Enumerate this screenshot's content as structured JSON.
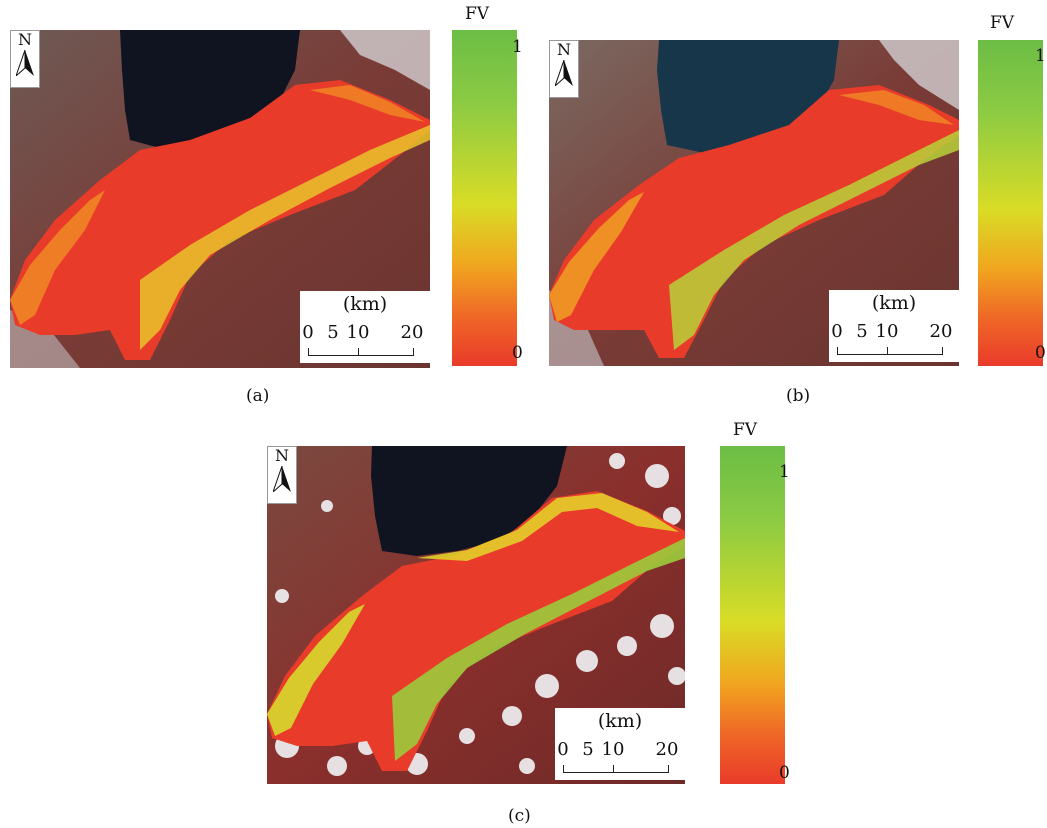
{
  "panels": [
    {
      "id": "a",
      "caption": "(a)"
    },
    {
      "id": "b",
      "caption": "(b)"
    },
    {
      "id": "c",
      "caption": "(c)"
    }
  ],
  "north_label": "N",
  "legend": {
    "title": "FV",
    "max_label": "1",
    "min_label": "0",
    "colors": [
      "#6cbd45",
      "#d9dc26",
      "#f0a61f",
      "#e93b2a"
    ]
  },
  "scale_bar": {
    "unit": "(km)",
    "ticks": [
      "0",
      "5",
      "10",
      "20"
    ]
  },
  "colors": {
    "lake": "#0f1420",
    "terrain": "#7a3b36",
    "snow": "#e9eef2",
    "fv_low": "#e93b2a",
    "fv_mid": "#f0a61f",
    "fv_high": "#6cbd45"
  }
}
